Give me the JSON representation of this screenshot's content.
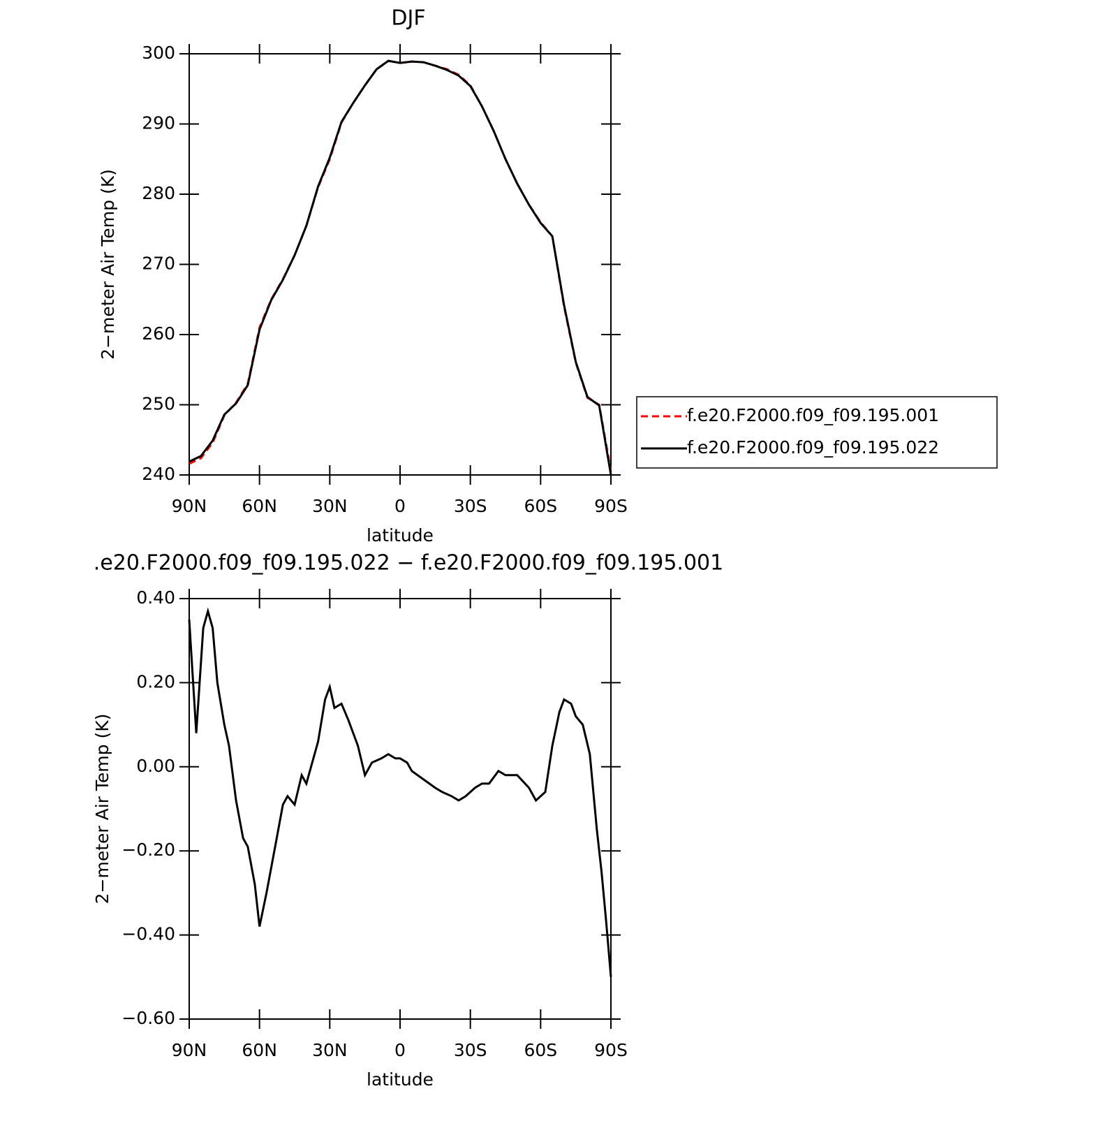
{
  "chart_data": [
    {
      "type": "line",
      "title": "DJF",
      "xlabel": "latitude",
      "ylabel": "2−meter Air Temp (K)",
      "x": [
        90,
        85,
        80,
        75,
        70,
        65,
        60,
        55,
        50,
        45,
        40,
        35,
        30,
        25,
        20,
        15,
        10,
        5,
        0,
        -5,
        -10,
        -15,
        -20,
        -25,
        -30,
        -35,
        -40,
        -45,
        -50,
        -55,
        -60,
        -65,
        -70,
        -75,
        -80,
        -85,
        -90
      ],
      "series": [
        {
          "name": "f.e20.F2000.f09_f09.195.001",
          "color": "#ff0000",
          "linestyle": "dashed",
          "values": [
            241.6,
            242.4,
            244.6,
            248.5,
            250.3,
            253,
            261,
            265,
            267.9,
            271.3,
            275.5,
            281,
            285,
            290.2,
            293,
            295.5,
            297.8,
            299,
            298.7,
            298.9,
            298.8,
            298.3,
            297.8,
            297,
            295.5,
            292.5,
            289,
            285,
            281.5,
            278.5,
            276,
            274,
            264,
            256,
            251,
            250,
            240.5
          ]
        },
        {
          "name": "f.e20.F2000.f09_f09.195.022",
          "color": "#000000",
          "linestyle": "solid",
          "values": [
            241.9,
            242.7,
            244.9,
            248.6,
            250.2,
            252.8,
            260.7,
            264.9,
            267.8,
            271.3,
            275.5,
            281.1,
            285.2,
            290.3,
            293,
            295.5,
            297.8,
            299,
            298.7,
            298.9,
            298.8,
            298.3,
            297.7,
            296.9,
            295.4,
            292.5,
            289,
            285,
            281.5,
            278.5,
            275.9,
            274,
            264.2,
            256.1,
            251.1,
            249.9,
            240
          ]
        }
      ],
      "xlim": [
        90,
        -90
      ],
      "xticks": [
        {
          "value": 90,
          "label": "90N"
        },
        {
          "value": 60,
          "label": "60N"
        },
        {
          "value": 30,
          "label": "30N"
        },
        0,
        {
          "value": -30,
          "label": "30S"
        },
        {
          "value": -60,
          "label": "60S"
        },
        {
          "value": -90,
          "label": "90S"
        }
      ],
      "ylim": [
        240,
        300
      ],
      "yticks": [
        240,
        250,
        260,
        270,
        280,
        290,
        300
      ],
      "legend": "right"
    },
    {
      "type": "line",
      "title": ".e20.F2000.f09_f09.195.022 − f.e20.F2000.f09_f09.195.001",
      "xlabel": "latitude",
      "ylabel": "2−meter Air Temp (K)",
      "x": [
        90,
        87,
        84,
        82,
        80,
        78,
        75,
        73,
        70,
        67,
        65,
        62,
        60,
        57,
        53,
        50,
        48,
        45,
        42,
        40,
        38,
        35,
        32,
        30,
        28,
        25,
        22,
        18,
        15,
        12,
        8,
        5,
        2,
        0,
        -3,
        -5,
        -10,
        -15,
        -18,
        -22,
        -25,
        -28,
        -32,
        -35,
        -38,
        -42,
        -45,
        -50,
        -55,
        -58,
        -62,
        -65,
        -68,
        -70,
        -73,
        -75,
        -78,
        -81,
        -84,
        -86,
        -88,
        -90
      ],
      "series": [
        {
          "name": null,
          "color": "#000000",
          "linestyle": "solid",
          "values": [
            0.35,
            0.08,
            0.33,
            0.37,
            0.33,
            0.2,
            0.1,
            0.05,
            -0.08,
            -0.17,
            -0.19,
            -0.28,
            -0.38,
            -0.3,
            -0.18,
            -0.09,
            -0.07,
            -0.09,
            -0.02,
            -0.04,
            0,
            0.06,
            0.16,
            0.19,
            0.14,
            0.15,
            0.11,
            0.05,
            -0.02,
            0.01,
            0.02,
            0.03,
            0.02,
            0.02,
            0.01,
            -0.01,
            -0.03,
            -0.05,
            -0.06,
            -0.07,
            -0.08,
            -0.07,
            -0.05,
            -0.04,
            -0.04,
            -0.01,
            -0.02,
            -0.02,
            -0.05,
            -0.08,
            -0.06,
            0.05,
            0.13,
            0.16,
            0.15,
            0.12,
            0.1,
            0.03,
            -0.15,
            -0.25,
            -0.37,
            -0.5
          ]
        }
      ],
      "xlim": [
        90,
        -90
      ],
      "xticks": [
        {
          "value": 90,
          "label": "90N"
        },
        {
          "value": 60,
          "label": "60N"
        },
        {
          "value": 30,
          "label": "30N"
        },
        0,
        {
          "value": -30,
          "label": "30S"
        },
        {
          "value": -60,
          "label": "60S"
        },
        {
          "value": -90,
          "label": "90S"
        }
      ],
      "ylim": [
        -0.6,
        0.4
      ],
      "yticks": [
        {
          "value": -0.6,
          "label": "−0.60"
        },
        {
          "value": -0.4,
          "label": "−0.40"
        },
        {
          "value": -0.2,
          "label": "−0.20"
        },
        {
          "value": 0,
          "label": "0.00"
        },
        {
          "value": 0.2,
          "label": "0.20"
        },
        {
          "value": 0.4,
          "label": "0.40"
        }
      ]
    }
  ]
}
